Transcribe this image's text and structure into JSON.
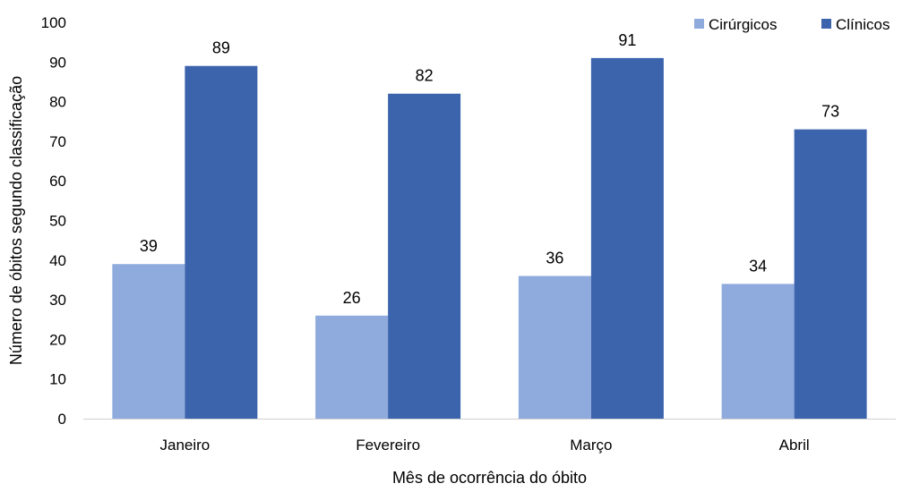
{
  "chart_data": {
    "type": "bar",
    "title": "",
    "xlabel": "Mês de ocorrência do óbito",
    "ylabel": "Número de óbitos segundo classificação",
    "categories": [
      "Janeiro",
      "Fevereiro",
      "Março",
      "Abril"
    ],
    "series": [
      {
        "name": "Cirúrgicos",
        "color": "#8faadc",
        "values": [
          39,
          26,
          36,
          34
        ]
      },
      {
        "name": "Clínicos",
        "color": "#3b64ad",
        "values": [
          89,
          82,
          91,
          73
        ]
      }
    ],
    "ylim": [
      0,
      100
    ],
    "yticks": [
      0,
      10,
      20,
      30,
      40,
      50,
      60,
      70,
      80,
      90,
      100
    ],
    "grid": false,
    "legend_position": "top-right",
    "data_labels": true
  }
}
